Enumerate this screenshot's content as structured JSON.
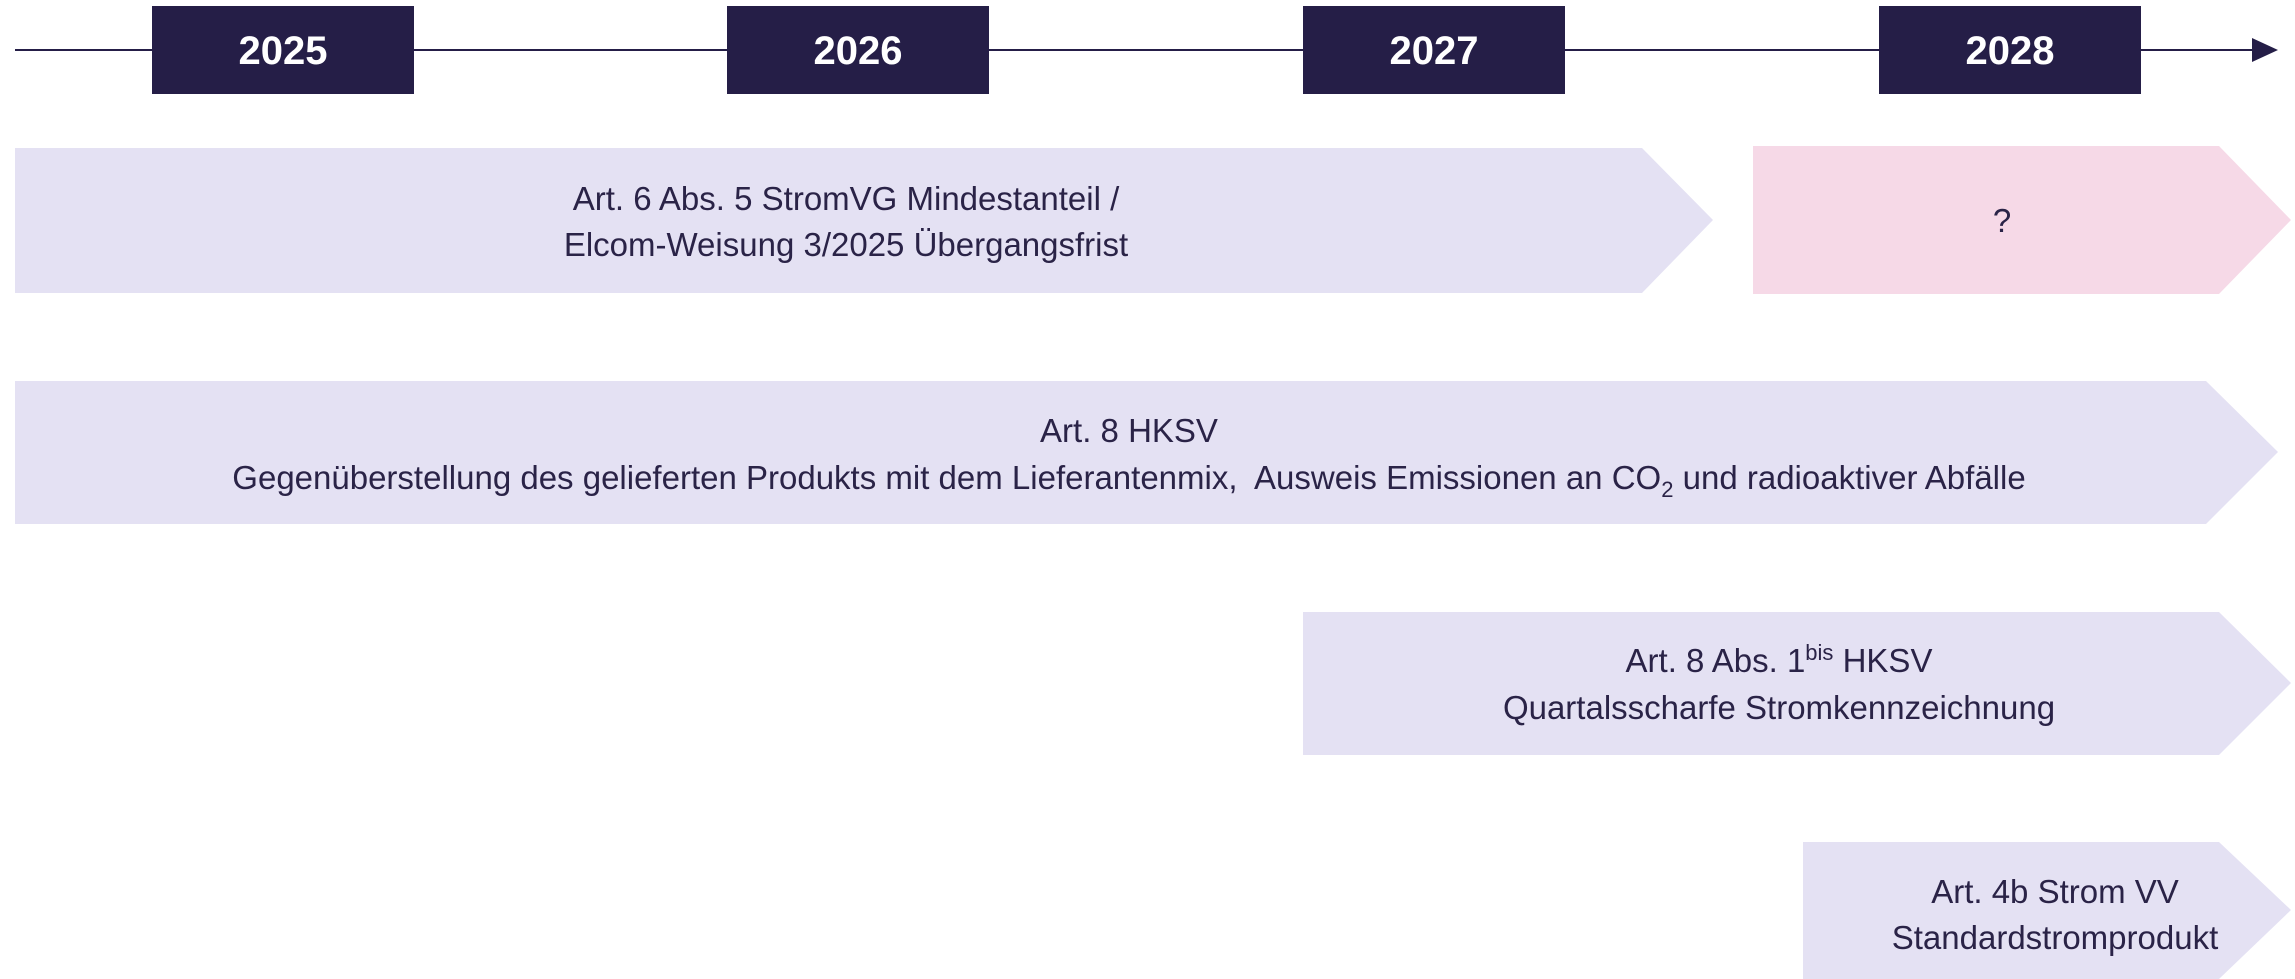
{
  "timeline": {
    "years": [
      "2025",
      "2026",
      "2027",
      "2028"
    ]
  },
  "bars": [
    {
      "lines": [
        {
          "text": "Art. 6 Abs. 5 StromVG Mindestanteil /"
        },
        {
          "text": "Elcom-Weisung 3/2025 Übergangsfrist"
        }
      ]
    },
    {
      "lines": [
        {
          "text": "?"
        }
      ]
    },
    {
      "lines": [
        {
          "text": "Art. 8 HKSV"
        },
        {
          "text": "Gegenüberstellung des gelieferten Produkts mit dem Lieferantenmix,  Ausweis Emissionen an CO",
          "sub": "2",
          "after": " und radioaktiver Abfälle"
        }
      ]
    },
    {
      "lines": [
        {
          "text": "Art. 8 Abs. 1",
          "sup": "bis",
          "after": " HKSV"
        },
        {
          "text": "Quartalsscharfe Stromkennzeichnung"
        }
      ]
    },
    {
      "lines": [
        {
          "text": "Art. 4b Strom VV"
        },
        {
          "text": "Standardstromprodukt"
        }
      ]
    }
  ]
}
